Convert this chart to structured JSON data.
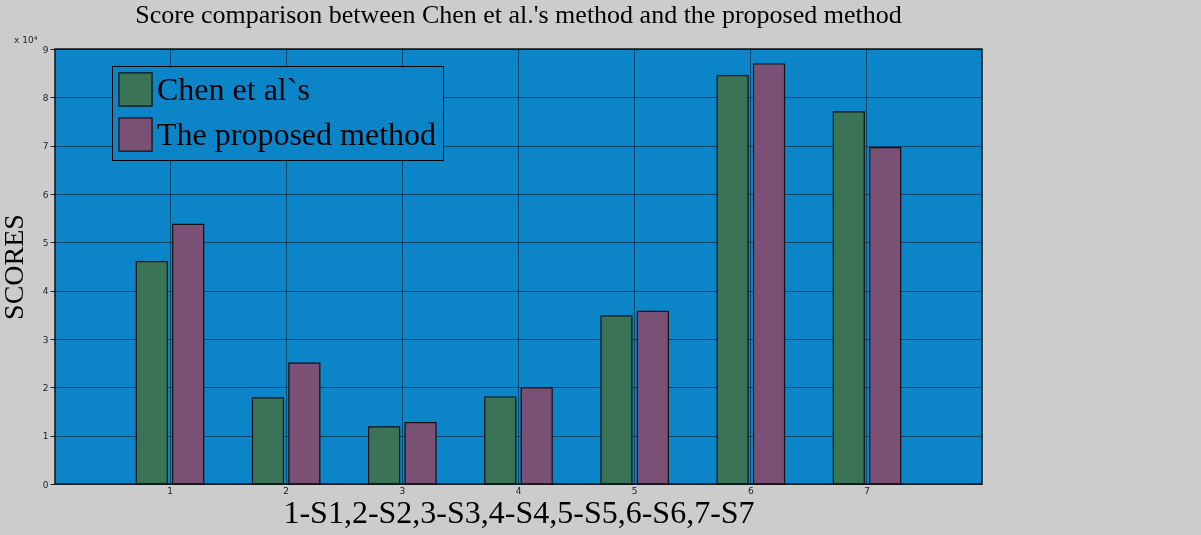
{
  "chart_data": {
    "type": "bar",
    "title": "Score  comparison between Chen et al.'s method and the proposed method",
    "xlabel": "1-S1,2-S2,3-S3,4-S4,5-S5,6-S6,7-S7",
    "ylabel": "SCORES",
    "categories": [
      "1",
      "2",
      "3",
      "4",
      "5",
      "6",
      "7"
    ],
    "series": [
      {
        "name": "Chen et al`s",
        "color": "#3b7356",
        "values": [
          4.6,
          1.78,
          1.18,
          1.8,
          3.48,
          8.45,
          7.7
        ]
      },
      {
        "name": "The proposed method",
        "color": "#7a5075",
        "values": [
          5.37,
          2.5,
          1.27,
          1.99,
          3.57,
          8.69,
          6.96
        ]
      }
    ],
    "ylim": [
      0,
      9
    ],
    "yticks": [
      0,
      1,
      2,
      3,
      4,
      5,
      6,
      7,
      8,
      9
    ],
    "grid": true,
    "legend": "top left",
    "annotations": [
      "x 10⁴"
    ]
  }
}
